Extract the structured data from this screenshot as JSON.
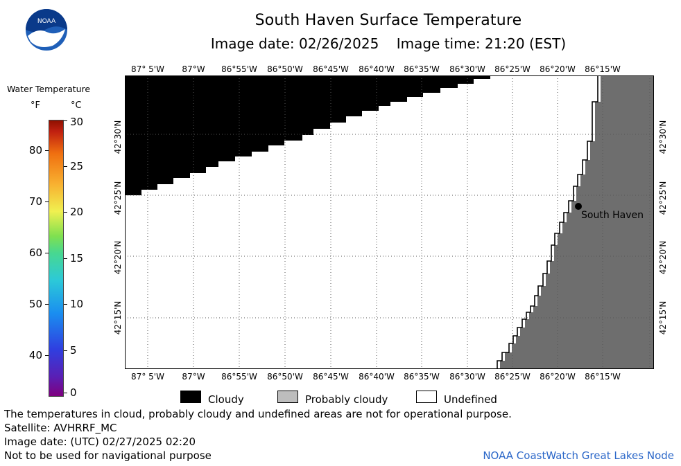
{
  "header": {
    "title": "South Haven Surface Temperature",
    "subtitle": "Image date: 02/26/2025    Image time: 21:20 (EST)",
    "logo_text": "NOAA"
  },
  "legend": {
    "title": "Water Temperature",
    "unit_f": "°F",
    "unit_c": "°C",
    "f_ticks": [
      "80",
      "70",
      "60",
      "50",
      "40"
    ],
    "c_ticks": [
      "30",
      "25",
      "20",
      "15",
      "10",
      "5",
      "0"
    ]
  },
  "map": {
    "lon_labels": [
      "87° 5'W",
      "87°W",
      "86°55'W",
      "86°50'W",
      "86°45'W",
      "86°40'W",
      "86°35'W",
      "86°30'W",
      "86°25'W",
      "86°20'W",
      "86°15'W"
    ],
    "lat_labels": [
      "42°30'N",
      "42°25'N",
      "42°20'N",
      "42°15'N"
    ],
    "place_label": "South Haven",
    "colors": {
      "cloudy": "#000000",
      "probably_cloudy": "#6e6e6e",
      "undefined": "#ffffff",
      "grid": "#555555"
    }
  },
  "key": {
    "cloudy": "Cloudy",
    "probably_cloudy": "Probably cloudy",
    "undefined": "Undefined"
  },
  "notes": {
    "disclaimer": "The temperatures in cloud, probably cloudy and undefined areas are not for operational purpose.",
    "satellite": "Satellite: AVHRRF_MC",
    "utc_date": "Image date: (UTC) 02/27/2025  02:20",
    "nav": "Not to be used for navigational purpose",
    "credit": "NOAA CoastWatch Great Lakes Node"
  }
}
